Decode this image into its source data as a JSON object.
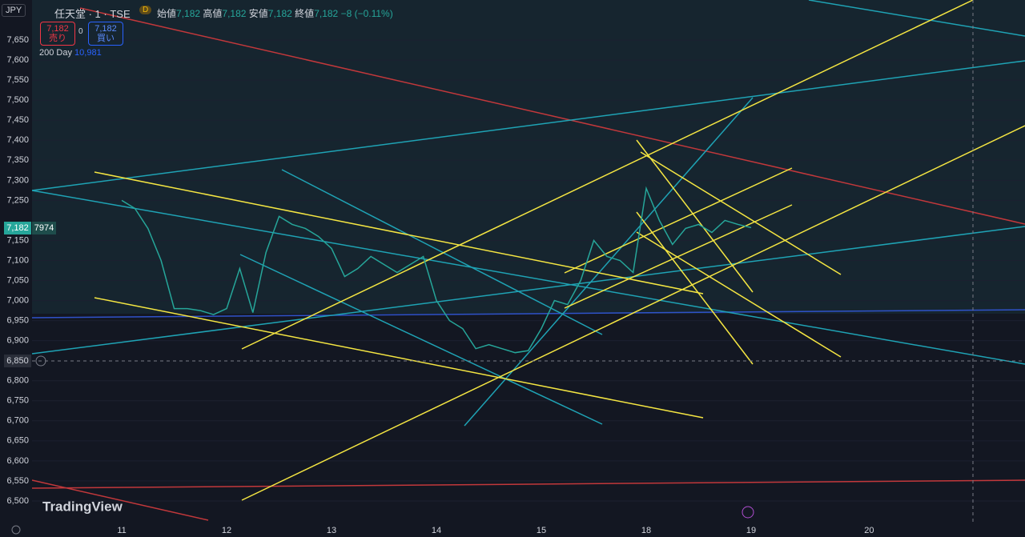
{
  "header": {
    "currency": "JPY",
    "symbol": "任天堂 · 1 · TSE",
    "interval_badge": "D",
    "open_label": "始値",
    "open": "7,182",
    "high_label": "高値",
    "high": "7,182",
    "low_label": "安値",
    "low": "7,182",
    "close_label": "終値",
    "close": "7,182",
    "change": "−8 (−0.11%)",
    "sell_price": "7,182",
    "sell_label": "売り",
    "spread": "0",
    "buy_price": "7,182",
    "buy_label": "買い",
    "indicator_name": "200 Day",
    "indicator_value": "10,981",
    "last_price_tag": "7,182",
    "countdown_tag": "7974",
    "crosshair_tag": "6,850",
    "logo": "TradingView"
  },
  "chart_data": {
    "type": "line",
    "categories": [
      null,
      null,
      null,
      null,
      null,
      null,
      null,
      "11",
      null,
      null,
      null,
      null,
      null,
      null,
      null,
      "12",
      null,
      null,
      null,
      null,
      null,
      null,
      null,
      "13",
      null,
      null,
      null,
      null,
      null,
      null,
      null,
      "14",
      null,
      null,
      null,
      null,
      null,
      null,
      null,
      "15",
      null,
      null,
      null,
      null,
      null,
      null,
      null,
      "18",
      null,
      null,
      null,
      null,
      null,
      null,
      null,
      "19",
      null,
      null,
      null,
      null,
      null,
      null,
      null,
      null,
      "20",
      null,
      null,
      null,
      null,
      null,
      null,
      null,
      null,
      null,
      null,
      null
    ],
    "series": [
      {
        "color": "#26a69a",
        "values": [
          null,
          null,
          null,
          null,
          null,
          null,
          null,
          7250,
          7230,
          7180,
          7100,
          6980,
          6980,
          6975,
          6965,
          6980,
          7080,
          6970,
          7120,
          7210,
          7190,
          7180,
          7160,
          7130,
          7060,
          7080,
          7110,
          7090,
          7070,
          7090,
          7110,
          7000,
          6950,
          6930,
          6880,
          6890,
          6880,
          6870,
          6875,
          6930,
          7000,
          6990,
          7050,
          7150,
          7110,
          7100,
          7070,
          7280,
          7200,
          7140,
          7180,
          7190,
          7170,
          7200,
          7190,
          7182,
          null,
          null,
          null,
          null,
          null,
          null,
          null,
          null,
          null,
          null,
          null,
          null,
          null,
          null,
          null,
          null,
          null,
          null,
          null,
          null
        ]
      }
    ],
    "ylim": [
      6442,
      7750
    ],
    "yticks": [
      {
        "value": 6500,
        "label": "6,500"
      },
      {
        "value": 6550,
        "label": "6,550"
      },
      {
        "value": 6600,
        "label": "6,600"
      },
      {
        "value": 6650,
        "label": "6,650"
      },
      {
        "value": 6700,
        "label": "6,700"
      },
      {
        "value": 6750,
        "label": "6,750"
      },
      {
        "value": 6800,
        "label": "6,800"
      },
      {
        "value": 6900,
        "label": "6,900"
      },
      {
        "value": 6950,
        "label": "6,950"
      },
      {
        "value": 7000,
        "label": "7,000"
      },
      {
        "value": 7050,
        "label": "7,050"
      },
      {
        "value": 7100,
        "label": "7,100"
      },
      {
        "value": 7150,
        "label": "7,150"
      },
      {
        "value": 7250,
        "label": "7,250"
      },
      {
        "value": 7300,
        "label": "7,300"
      },
      {
        "value": 7350,
        "label": "7,350"
      },
      {
        "value": 7400,
        "label": "7,400"
      },
      {
        "value": 7450,
        "label": "7,450"
      },
      {
        "value": 7500,
        "label": "7,500"
      },
      {
        "value": 7550,
        "label": "7,550"
      },
      {
        "value": 7600,
        "label": "7,600"
      },
      {
        "value": 7650,
        "label": "7,650"
      }
    ],
    "grid": true
  }
}
